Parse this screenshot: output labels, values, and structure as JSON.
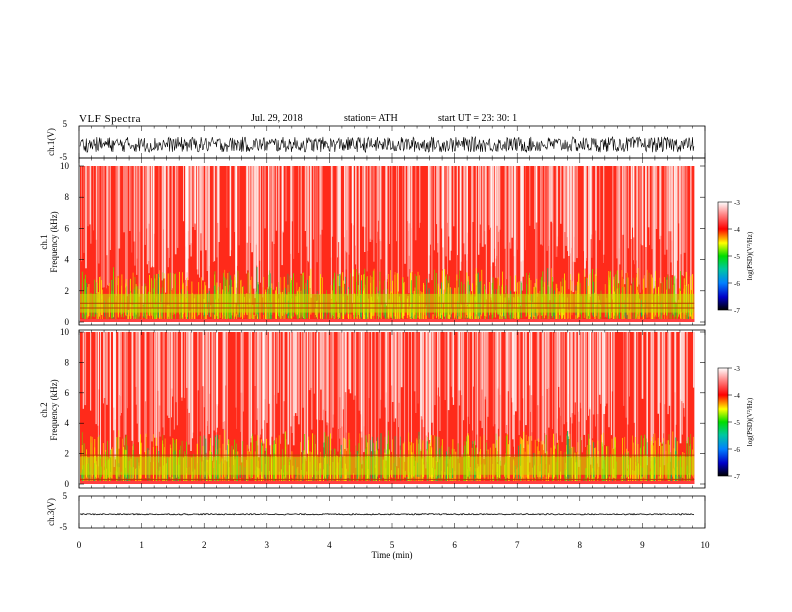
{
  "header": {
    "title": "VLF  Spectra",
    "date": "Jul.  29, 2018",
    "station": "station= ATH",
    "start": "start  UT  =    23: 30: 1"
  },
  "chart_data": [
    {
      "type": "line",
      "name": "waveform-ch1",
      "ylabel": "ch.1(V)",
      "ylim": [
        -5,
        5
      ],
      "yticks": [
        "5",
        "-5"
      ],
      "xlim": [
        0,
        9.83
      ],
      "description_values": {
        "mean": -1.2,
        "envelope": [
          -3.2,
          1.6
        ]
      },
      "color": "#000000"
    },
    {
      "type": "heatmap",
      "name": "spectrogram-ch1",
      "ylabel": "ch.1\nFrequency  (kHz)",
      "ylabel_line1": "ch.1",
      "ylabel_line2": "Frequency  (kHz)",
      "ylim": [
        0,
        10
      ],
      "yticks": [
        "0",
        "2",
        "4",
        "6",
        "8",
        "10"
      ],
      "xlim": [
        0,
        9.83
      ],
      "colorbar": {
        "label": "log(PSD)(V²/Hz)",
        "range": [
          -7,
          -3
        ],
        "ticks": [
          "-3",
          "-4",
          "-5",
          "-6",
          "-7"
        ]
      }
    },
    {
      "type": "heatmap",
      "name": "spectrogram-ch2",
      "ylabel_line1": "ch.2",
      "ylabel_line2": "Frequency  (kHz)",
      "ylim": [
        0,
        10
      ],
      "yticks": [
        "0",
        "2",
        "4",
        "6",
        "8",
        "10"
      ],
      "xlim": [
        0,
        9.83
      ],
      "colorbar": {
        "label": "log(PSD)(V²/Hz)",
        "range": [
          -7,
          -3
        ],
        "ticks": [
          "-3",
          "-4",
          "-5",
          "-6",
          "-7"
        ]
      }
    },
    {
      "type": "line",
      "name": "waveform-ch3",
      "ylabel": "ch.3(V)",
      "ylim": [
        -5,
        5
      ],
      "yticks": [
        "5",
        "-5"
      ],
      "xlim": [
        0,
        9.83
      ],
      "description_values": {
        "mean": -0.7,
        "envelope": [
          -0.9,
          -0.5
        ]
      },
      "color": "#000000"
    }
  ],
  "xaxis": {
    "label": "Time  (min)",
    "range": [
      0,
      10
    ],
    "ticks": [
      "0",
      "1",
      "2",
      "3",
      "4",
      "5",
      "6",
      "7",
      "8",
      "9",
      "10"
    ]
  }
}
